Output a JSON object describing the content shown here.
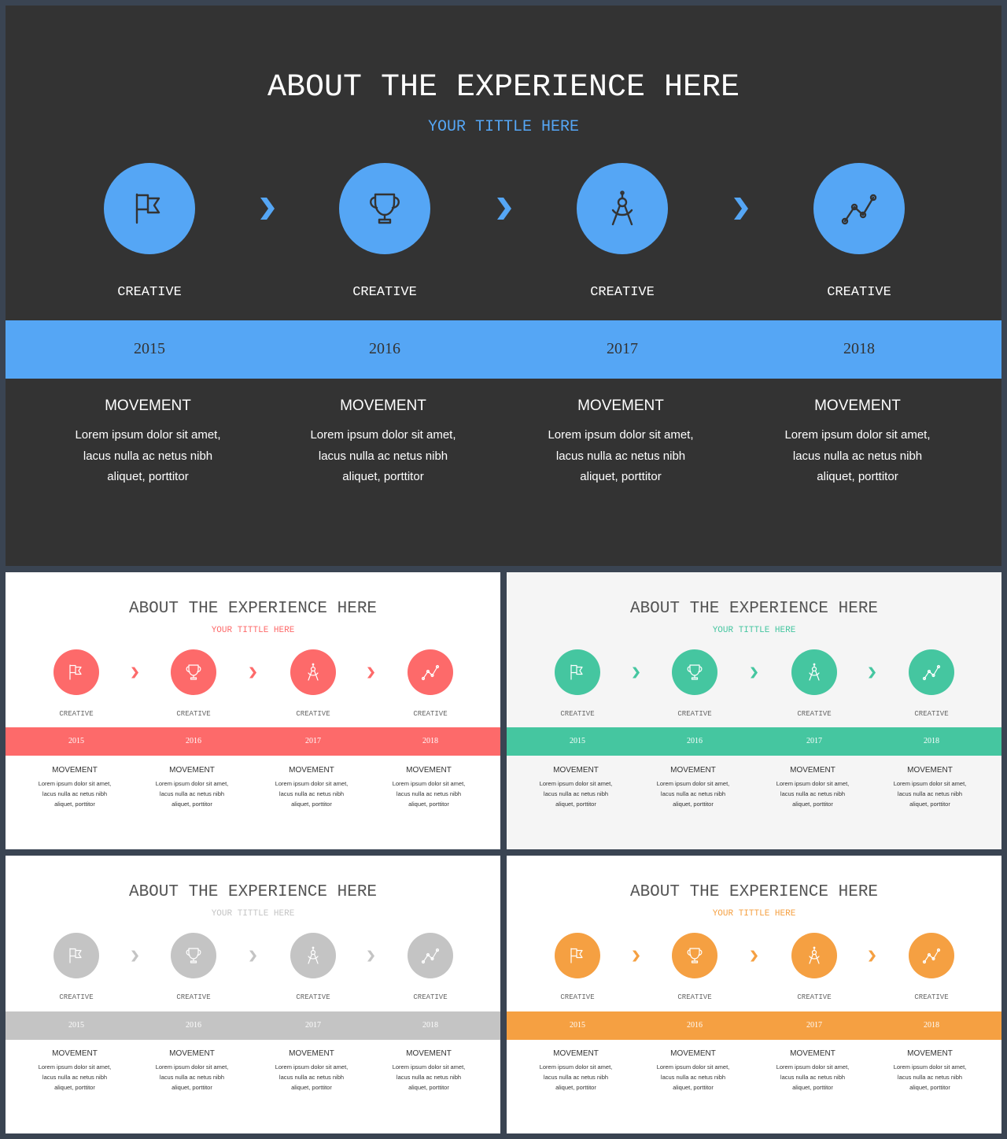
{
  "slides": [
    {
      "id": "dark-blue",
      "title": "ABOUT THE EXPERIENCE HERE",
      "subtitle": "YOUR TITTLE HERE",
      "colors": {
        "background": "#333333",
        "accent": "#55a6f5",
        "title": "#ffffff",
        "label": "#ffffff",
        "year": "#333333",
        "movement": "#ffffff"
      },
      "steps": [
        {
          "icon": "flag-icon",
          "label": "CREATIVE",
          "year": "2015",
          "heading": "MOVEMENT",
          "lines": [
            "Lorem ipsum dolor sit amet,",
            "lacus nulla ac netus nibh",
            "aliquet, porttitor"
          ]
        },
        {
          "icon": "trophy-icon",
          "label": "CREATIVE",
          "year": "2016",
          "heading": "MOVEMENT",
          "lines": [
            "Lorem ipsum dolor sit amet,",
            "lacus nulla ac netus nibh",
            "aliquet, porttitor"
          ]
        },
        {
          "icon": "compass-icon",
          "label": "CREATIVE",
          "year": "2017",
          "heading": "MOVEMENT",
          "lines": [
            "Lorem ipsum dolor sit amet,",
            "lacus nulla ac netus nibh",
            "aliquet, porttitor"
          ]
        },
        {
          "icon": "line-chart-icon",
          "label": "CREATIVE",
          "year": "2018",
          "heading": "MOVEMENT",
          "lines": [
            "Lorem ipsum dolor sit amet,",
            "lacus nulla ac netus nibh",
            "aliquet, porttitor"
          ]
        }
      ]
    },
    {
      "id": "red",
      "title": "ABOUT THE EXPERIENCE HERE",
      "subtitle": "YOUR TITTLE HERE",
      "colors": {
        "background": "#ffffff",
        "accent": "#fd6a6a",
        "title": "#555555",
        "label": "#666666",
        "year": "#ffffff",
        "movement": "#333333"
      },
      "steps": [
        {
          "icon": "flag-icon",
          "label": "CREATIVE",
          "year": "2015",
          "heading": "MOVEMENT",
          "lines": [
            "Lorem ipsum dolor sit amet,",
            "lacus nulla ac netus nibh",
            "aliquet, porttitor"
          ]
        },
        {
          "icon": "trophy-icon",
          "label": "CREATIVE",
          "year": "2016",
          "heading": "MOVEMENT",
          "lines": [
            "Lorem ipsum dolor sit amet,",
            "lacus nulla ac netus nibh",
            "aliquet, porttitor"
          ]
        },
        {
          "icon": "compass-icon",
          "label": "CREATIVE",
          "year": "2017",
          "heading": "MOVEMENT",
          "lines": [
            "Lorem ipsum dolor sit amet,",
            "lacus nulla ac netus nibh",
            "aliquet, porttitor"
          ]
        },
        {
          "icon": "line-chart-icon",
          "label": "CREATIVE",
          "year": "2018",
          "heading": "MOVEMENT",
          "lines": [
            "Lorem ipsum dolor sit amet,",
            "lacus nulla ac netus nibh",
            "aliquet, porttitor"
          ]
        }
      ]
    },
    {
      "id": "green",
      "title": "ABOUT THE EXPERIENCE HERE",
      "subtitle": "YOUR TITTLE HERE",
      "colors": {
        "background": "#f5f5f5",
        "accent": "#45c6a0",
        "title": "#555555",
        "label": "#666666",
        "year": "#ffffff",
        "movement": "#333333"
      },
      "steps": [
        {
          "icon": "flag-icon",
          "label": "CREATIVE",
          "year": "2015",
          "heading": "MOVEMENT",
          "lines": [
            "Lorem ipsum dolor sit amet,",
            "lacus nulla ac netus nibh",
            "aliquet, porttitor"
          ]
        },
        {
          "icon": "trophy-icon",
          "label": "CREATIVE",
          "year": "2016",
          "heading": "MOVEMENT",
          "lines": [
            "Lorem ipsum dolor sit amet,",
            "lacus nulla ac netus nibh",
            "aliquet, porttitor"
          ]
        },
        {
          "icon": "compass-icon",
          "label": "CREATIVE",
          "year": "2017",
          "heading": "MOVEMENT",
          "lines": [
            "Lorem ipsum dolor sit amet,",
            "lacus nulla ac netus nibh",
            "aliquet, porttitor"
          ]
        },
        {
          "icon": "line-chart-icon",
          "label": "CREATIVE",
          "year": "2018",
          "heading": "MOVEMENT",
          "lines": [
            "Lorem ipsum dolor sit amet,",
            "lacus nulla ac netus nibh",
            "aliquet, porttitor"
          ]
        }
      ]
    },
    {
      "id": "gray",
      "title": "ABOUT THE EXPERIENCE HERE",
      "subtitle": "YOUR TITTLE HERE",
      "colors": {
        "background": "#ffffff",
        "accent": "#c4c4c4",
        "title": "#555555",
        "label": "#666666",
        "year": "#ffffff",
        "movement": "#333333"
      },
      "steps": [
        {
          "icon": "flag-icon",
          "label": "CREATIVE",
          "year": "2015",
          "heading": "MOVEMENT",
          "lines": [
            "Lorem ipsum dolor sit amet,",
            "lacus nulla ac netus nibh",
            "aliquet, porttitor"
          ]
        },
        {
          "icon": "trophy-icon",
          "label": "CREATIVE",
          "year": "2016",
          "heading": "MOVEMENT",
          "lines": [
            "Lorem ipsum dolor sit amet,",
            "lacus nulla ac netus nibh",
            "aliquet, porttitor"
          ]
        },
        {
          "icon": "compass-icon",
          "label": "CREATIVE",
          "year": "2017",
          "heading": "MOVEMENT",
          "lines": [
            "Lorem ipsum dolor sit amet,",
            "lacus nulla ac netus nibh",
            "aliquet, porttitor"
          ]
        },
        {
          "icon": "line-chart-icon",
          "label": "CREATIVE",
          "year": "2018",
          "heading": "MOVEMENT",
          "lines": [
            "Lorem ipsum dolor sit amet,",
            "lacus nulla ac netus nibh",
            "aliquet, porttitor"
          ]
        }
      ]
    },
    {
      "id": "orange",
      "title": "ABOUT THE EXPERIENCE HERE",
      "subtitle": "YOUR TITTLE HERE",
      "colors": {
        "background": "#ffffff",
        "accent": "#f5a042",
        "title": "#555555",
        "label": "#666666",
        "year": "#ffffff",
        "movement": "#333333"
      },
      "steps": [
        {
          "icon": "flag-icon",
          "label": "CREATIVE",
          "year": "2015",
          "heading": "MOVEMENT",
          "lines": [
            "Lorem ipsum dolor sit amet,",
            "lacus nulla ac netus nibh",
            "aliquet, porttitor"
          ]
        },
        {
          "icon": "trophy-icon",
          "label": "CREATIVE",
          "year": "2016",
          "heading": "MOVEMENT",
          "lines": [
            "Lorem ipsum dolor sit amet,",
            "lacus nulla ac netus nibh",
            "aliquet, porttitor"
          ]
        },
        {
          "icon": "compass-icon",
          "label": "CREATIVE",
          "year": "2017",
          "heading": "MOVEMENT",
          "lines": [
            "Lorem ipsum dolor sit amet,",
            "lacus nulla ac netus nibh",
            "aliquet, porttitor"
          ]
        },
        {
          "icon": "line-chart-icon",
          "label": "CREATIVE",
          "year": "2018",
          "heading": "MOVEMENT",
          "lines": [
            "Lorem ipsum dolor sit amet,",
            "lacus nulla ac netus nibh",
            "aliquet, porttitor"
          ]
        }
      ]
    }
  ]
}
